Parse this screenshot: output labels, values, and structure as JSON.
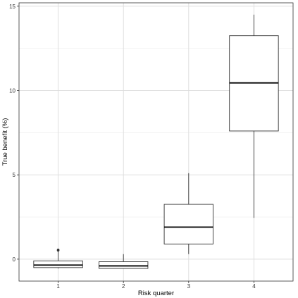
{
  "chart_data": {
    "type": "box",
    "title": "",
    "xlabel": "Risk quarter",
    "ylabel": "True benefit (%)",
    "categories": [
      "1",
      "2",
      "3",
      "4"
    ],
    "ylim": [
      -1.3,
      15.2
    ],
    "y_ticks": [
      0,
      5,
      10,
      15
    ],
    "grid": true,
    "boxes": [
      {
        "category": "1",
        "whisker_low": -0.55,
        "q1": -0.5,
        "median": -0.35,
        "q3": -0.1,
        "whisker_high": 0.45,
        "outliers": [
          0.55,
          0.52
        ]
      },
      {
        "category": "2",
        "whisker_low": -0.55,
        "q1": -0.55,
        "median": -0.4,
        "q3": -0.15,
        "whisker_high": 0.3,
        "outliers": []
      },
      {
        "category": "3",
        "whisker_low": 0.3,
        "q1": 0.9,
        "median": 1.9,
        "q3": 3.25,
        "whisker_high": 5.1,
        "outliers": []
      },
      {
        "category": "4",
        "whisker_low": 2.45,
        "q1": 7.6,
        "median": 10.45,
        "q3": 13.25,
        "whisker_high": 14.5,
        "outliers": []
      }
    ]
  }
}
